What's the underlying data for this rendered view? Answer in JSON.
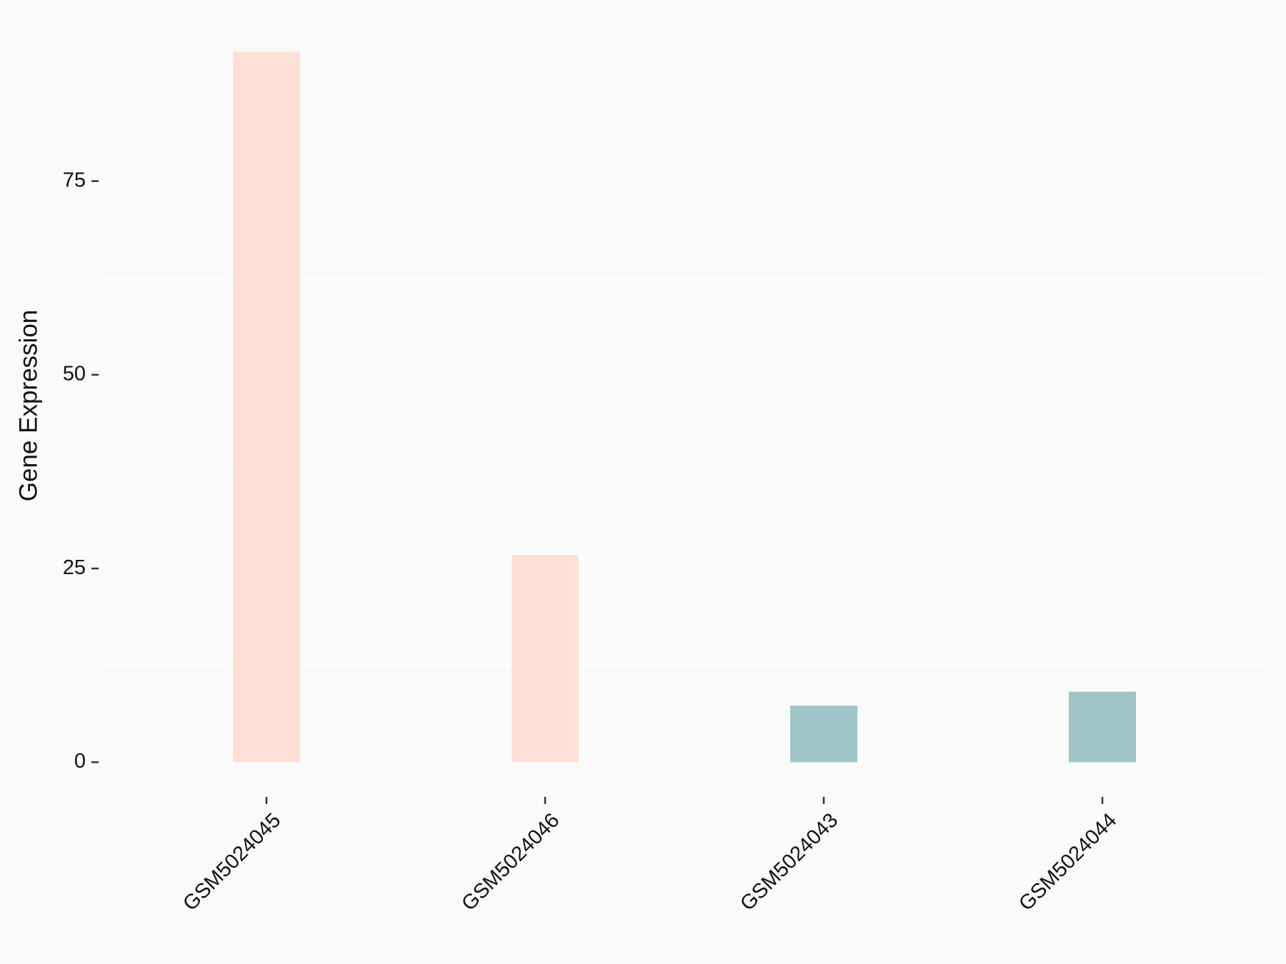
{
  "chart_data": {
    "type": "bar",
    "y_label": "Gene Expression",
    "categories": [
      "GSM5024045",
      "GSM5024046",
      "GSM5024043",
      "GSM5024044"
    ],
    "values": [
      91.7,
      26.7,
      7.3,
      9.1
    ],
    "colors": [
      "#fee0d6",
      "#fee0d6",
      "#9fc5c9",
      "#9fc5c9"
    ],
    "ylim": [
      -4.6,
      96.3
    ],
    "yticks": [
      0,
      25,
      50,
      75
    ],
    "minor_yticks": [
      12.5,
      37.5,
      62.5,
      87.5
    ],
    "grid": true
  }
}
